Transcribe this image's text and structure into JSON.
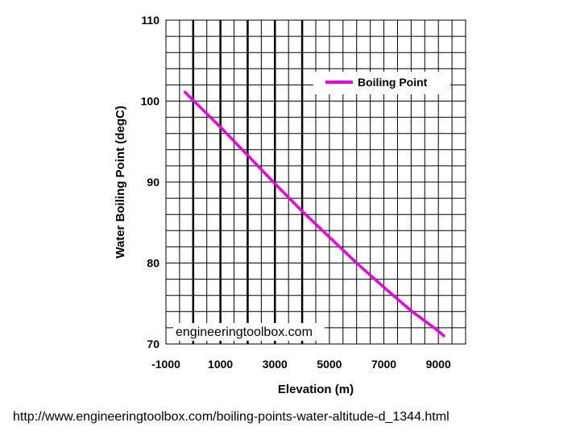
{
  "chart_data": {
    "type": "line",
    "title": "",
    "xlabel": "Elevation (m)",
    "ylabel": "Water Boiling Point (degC)",
    "xlim": [
      -1000,
      10000
    ],
    "ylim": [
      70,
      110
    ],
    "x_ticks": [
      -1000,
      1000,
      3000,
      5000,
      7000,
      9000
    ],
    "x_tick_labels": [
      "-1000",
      "1000",
      "3000",
      "5000",
      "7000",
      "9000"
    ],
    "y_ticks": [
      70,
      80,
      90,
      100,
      110
    ],
    "y_tick_labels": [
      "70",
      "80",
      "90",
      "100",
      "110"
    ],
    "grid": true,
    "legend": "top-right",
    "series": [
      {
        "name": "Boiling Point",
        "color": "#e600e6",
        "x": [
          -300,
          0,
          1000,
          2000,
          3000,
          4000,
          5000,
          6000,
          7000,
          8000,
          9000,
          9200
        ],
        "y": [
          101.1,
          100.1,
          96.8,
          93.3,
          89.8,
          86.4,
          83.2,
          80.0,
          77.0,
          74.1,
          71.6,
          71.0
        ]
      }
    ],
    "watermark": "engineeringtoolbox.com"
  },
  "source_url": "http://www.engineeringtoolbox.com/boiling-points-water-altitude-d_1344.html"
}
